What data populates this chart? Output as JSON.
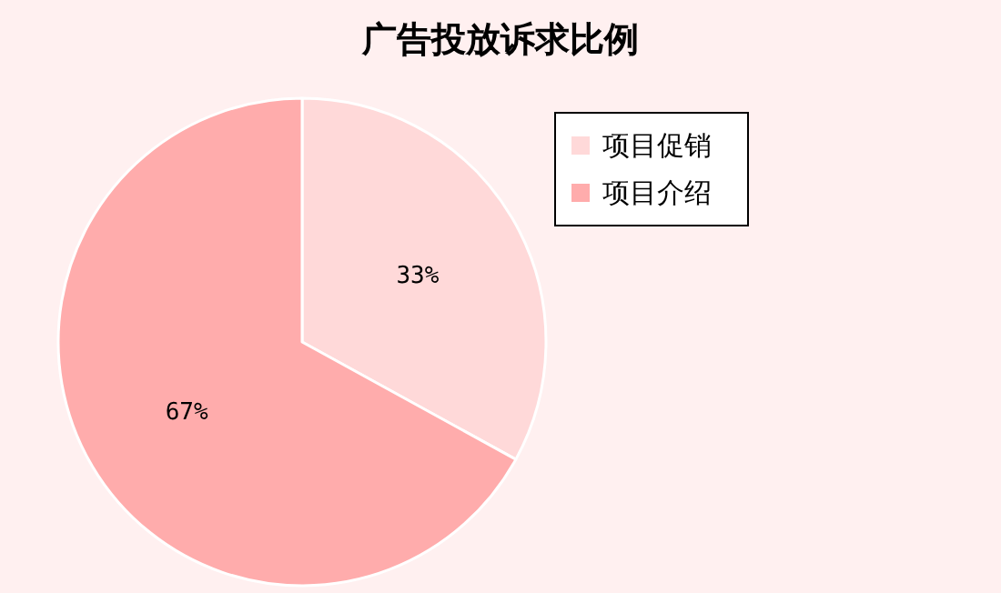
{
  "chart_data": {
    "type": "pie",
    "title": "广告投放诉求比例",
    "categories": [
      "项目促销",
      "项目介绍"
    ],
    "values": [
      33,
      67
    ],
    "colors": [
      "#ffd9d9",
      "#ffacac"
    ],
    "value_labels": [
      "33%",
      "67%"
    ],
    "legend": "top right"
  }
}
